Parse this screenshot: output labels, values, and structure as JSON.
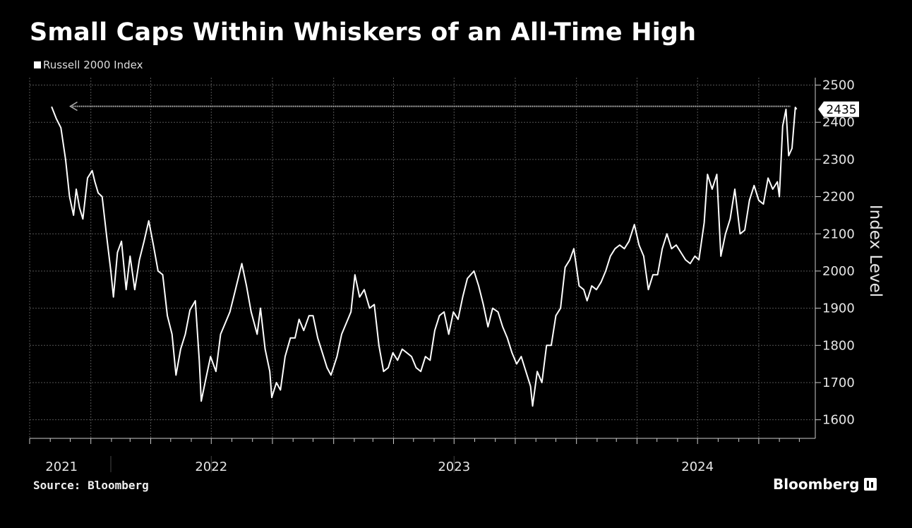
{
  "chart_data": {
    "type": "line",
    "title": "Small Caps Within Whiskers of an All-Time High",
    "legend": [
      "Russell 2000 Index"
    ],
    "legend_position": "top-left",
    "ylabel": "Index Level",
    "y_axis_side": "right",
    "ylim": [
      1550,
      2520
    ],
    "y_ticks": [
      1600,
      1700,
      1800,
      1900,
      2000,
      2100,
      2200,
      2300,
      2400,
      2500
    ],
    "x_ticks": [
      "2021",
      "2022",
      "2023",
      "2024"
    ],
    "grid": true,
    "last_value_label": "2435",
    "reference_line": {
      "value": 2443,
      "style": "dotted",
      "arrow": "left"
    },
    "series": [
      {
        "name": "Russell 2000 Index",
        "points": [
          [
            "2021-11-03",
            2442
          ],
          [
            "2021-11-10",
            2410
          ],
          [
            "2021-11-17",
            2385
          ],
          [
            "2021-11-24",
            2300
          ],
          [
            "2021-11-30",
            2200
          ],
          [
            "2021-12-06",
            2150
          ],
          [
            "2021-12-10",
            2220
          ],
          [
            "2021-12-15",
            2170
          ],
          [
            "2021-12-20",
            2140
          ],
          [
            "2021-12-27",
            2250
          ],
          [
            "2022-01-03",
            2270
          ],
          [
            "2022-01-07",
            2240
          ],
          [
            "2022-01-12",
            2210
          ],
          [
            "2022-01-18",
            2200
          ],
          [
            "2022-01-25",
            2090
          ],
          [
            "2022-01-31",
            2000
          ],
          [
            "2022-02-04",
            1930
          ],
          [
            "2022-02-10",
            2050
          ],
          [
            "2022-02-16",
            2080
          ],
          [
            "2022-02-23",
            1950
          ],
          [
            "2022-03-01",
            2040
          ],
          [
            "2022-03-08",
            1950
          ],
          [
            "2022-03-15",
            2030
          ],
          [
            "2022-03-22",
            2080
          ],
          [
            "2022-03-29",
            2135
          ],
          [
            "2022-04-05",
            2070
          ],
          [
            "2022-04-12",
            2000
          ],
          [
            "2022-04-19",
            1990
          ],
          [
            "2022-04-26",
            1880
          ],
          [
            "2022-05-03",
            1830
          ],
          [
            "2022-05-09",
            1720
          ],
          [
            "2022-05-16",
            1790
          ],
          [
            "2022-05-23",
            1830
          ],
          [
            "2022-05-30",
            1895
          ],
          [
            "2022-06-07",
            1920
          ],
          [
            "2022-06-13",
            1760
          ],
          [
            "2022-06-16",
            1650
          ],
          [
            "2022-06-24",
            1720
          ],
          [
            "2022-06-30",
            1770
          ],
          [
            "2022-07-08",
            1730
          ],
          [
            "2022-07-15",
            1830
          ],
          [
            "2022-07-22",
            1860
          ],
          [
            "2022-07-29",
            1890
          ],
          [
            "2022-08-05",
            1940
          ],
          [
            "2022-08-16",
            2020
          ],
          [
            "2022-08-23",
            1960
          ],
          [
            "2022-08-30",
            1890
          ],
          [
            "2022-09-08",
            1830
          ],
          [
            "2022-09-13",
            1900
          ],
          [
            "2022-09-20",
            1790
          ],
          [
            "2022-09-27",
            1730
          ],
          [
            "2022-09-30",
            1660
          ],
          [
            "2022-10-07",
            1700
          ],
          [
            "2022-10-13",
            1680
          ],
          [
            "2022-10-20",
            1770
          ],
          [
            "2022-10-28",
            1820
          ],
          [
            "2022-11-04",
            1820
          ],
          [
            "2022-11-10",
            1870
          ],
          [
            "2022-11-17",
            1840
          ],
          [
            "2022-11-25",
            1880
          ],
          [
            "2022-12-01",
            1880
          ],
          [
            "2022-12-08",
            1820
          ],
          [
            "2022-12-15",
            1780
          ],
          [
            "2022-12-22",
            1740
          ],
          [
            "2022-12-28",
            1720
          ],
          [
            "2023-01-06",
            1770
          ],
          [
            "2023-01-13",
            1830
          ],
          [
            "2023-01-20",
            1860
          ],
          [
            "2023-01-27",
            1890
          ],
          [
            "2023-02-02",
            1990
          ],
          [
            "2023-02-09",
            1930
          ],
          [
            "2023-02-16",
            1950
          ],
          [
            "2023-02-24",
            1900
          ],
          [
            "2023-03-03",
            1910
          ],
          [
            "2023-03-10",
            1800
          ],
          [
            "2023-03-17",
            1730
          ],
          [
            "2023-03-24",
            1740
          ],
          [
            "2023-03-31",
            1780
          ],
          [
            "2023-04-07",
            1760
          ],
          [
            "2023-04-14",
            1790
          ],
          [
            "2023-04-21",
            1780
          ],
          [
            "2023-04-28",
            1770
          ],
          [
            "2023-05-05",
            1740
          ],
          [
            "2023-05-12",
            1730
          ],
          [
            "2023-05-19",
            1770
          ],
          [
            "2023-05-26",
            1760
          ],
          [
            "2023-06-02",
            1840
          ],
          [
            "2023-06-09",
            1880
          ],
          [
            "2023-06-16",
            1890
          ],
          [
            "2023-06-23",
            1830
          ],
          [
            "2023-06-30",
            1890
          ],
          [
            "2023-07-07",
            1870
          ],
          [
            "2023-07-14",
            1930
          ],
          [
            "2023-07-21",
            1980
          ],
          [
            "2023-07-31",
            2000
          ],
          [
            "2023-08-07",
            1960
          ],
          [
            "2023-08-14",
            1910
          ],
          [
            "2023-08-21",
            1850
          ],
          [
            "2023-08-28",
            1900
          ],
          [
            "2023-09-05",
            1890
          ],
          [
            "2023-09-12",
            1850
          ],
          [
            "2023-09-19",
            1820
          ],
          [
            "2023-09-26",
            1780
          ],
          [
            "2023-10-03",
            1750
          ],
          [
            "2023-10-10",
            1770
          ],
          [
            "2023-10-17",
            1730
          ],
          [
            "2023-10-24",
            1690
          ],
          [
            "2023-10-27",
            1637
          ],
          [
            "2023-11-03",
            1730
          ],
          [
            "2023-11-10",
            1700
          ],
          [
            "2023-11-17",
            1800
          ],
          [
            "2023-11-24",
            1800
          ],
          [
            "2023-12-01",
            1880
          ],
          [
            "2023-12-08",
            1900
          ],
          [
            "2023-12-15",
            2010
          ],
          [
            "2023-12-22",
            2030
          ],
          [
            "2023-12-28",
            2060
          ],
          [
            "2024-01-05",
            1960
          ],
          [
            "2024-01-12",
            1950
          ],
          [
            "2024-01-17",
            1920
          ],
          [
            "2024-01-24",
            1960
          ],
          [
            "2024-01-31",
            1950
          ],
          [
            "2024-02-07",
            1970
          ],
          [
            "2024-02-14",
            2000
          ],
          [
            "2024-02-21",
            2040
          ],
          [
            "2024-02-28",
            2060
          ],
          [
            "2024-03-06",
            2070
          ],
          [
            "2024-03-13",
            2060
          ],
          [
            "2024-03-20",
            2080
          ],
          [
            "2024-03-28",
            2125
          ],
          [
            "2024-04-04",
            2070
          ],
          [
            "2024-04-11",
            2040
          ],
          [
            "2024-04-18",
            1950
          ],
          [
            "2024-04-25",
            1990
          ],
          [
            "2024-05-02",
            1990
          ],
          [
            "2024-05-09",
            2060
          ],
          [
            "2024-05-16",
            2100
          ],
          [
            "2024-05-23",
            2060
          ],
          [
            "2024-05-30",
            2070
          ],
          [
            "2024-06-06",
            2050
          ],
          [
            "2024-06-13",
            2030
          ],
          [
            "2024-06-20",
            2020
          ],
          [
            "2024-06-27",
            2040
          ],
          [
            "2024-07-03",
            2030
          ],
          [
            "2024-07-11",
            2130
          ],
          [
            "2024-07-16",
            2260
          ],
          [
            "2024-07-23",
            2220
          ],
          [
            "2024-07-30",
            2260
          ],
          [
            "2024-08-05",
            2040
          ],
          [
            "2024-08-12",
            2100
          ],
          [
            "2024-08-19",
            2140
          ],
          [
            "2024-08-26",
            2220
          ],
          [
            "2024-09-03",
            2100
          ],
          [
            "2024-09-10",
            2110
          ],
          [
            "2024-09-17",
            2190
          ],
          [
            "2024-09-24",
            2230
          ],
          [
            "2024-10-01",
            2190
          ],
          [
            "2024-10-08",
            2180
          ],
          [
            "2024-10-15",
            2250
          ],
          [
            "2024-10-22",
            2220
          ],
          [
            "2024-10-29",
            2240
          ],
          [
            "2024-11-01",
            2200
          ],
          [
            "2024-11-06",
            2390
          ],
          [
            "2024-11-11",
            2435
          ],
          [
            "2024-11-15",
            2310
          ],
          [
            "2024-11-20",
            2330
          ],
          [
            "2024-11-25",
            2440
          ],
          [
            "2024-11-27",
            2435
          ]
        ]
      }
    ]
  },
  "footer": {
    "source": "Source: Bloomberg",
    "brand": "Bloomberg"
  },
  "colors": {
    "background": "#000000",
    "line": "#ffffff",
    "grid": "#555555",
    "text": "#e6e6e6"
  }
}
